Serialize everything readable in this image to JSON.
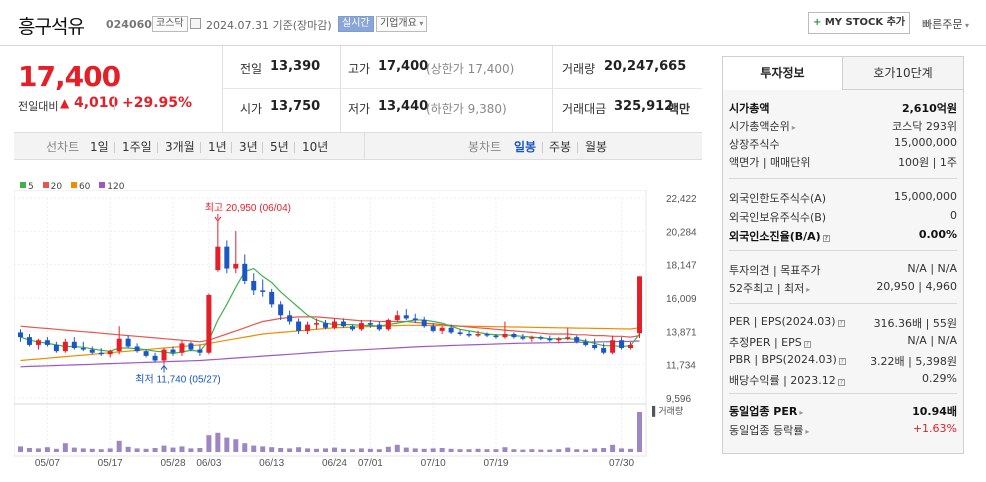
{
  "header": {
    "company_name": "흥구석유",
    "code": "024060",
    "market": "코스닥",
    "base_date": "2024.07.31 기준(장마감)",
    "realtime": "실시간",
    "company_overview": "기업개요",
    "my_stock": "MY STOCK 추가",
    "quick_order": "빠른주문"
  },
  "price": {
    "current": "17,400",
    "change_label": "전일대비",
    "change": "4,010",
    "change_pct": "+29.95%"
  },
  "quotes": {
    "prev_label": "전일",
    "prev": "13,390",
    "open_label": "시가",
    "open": "13,750",
    "high_label": "고가",
    "high": "17,400",
    "upper_limit": "(상한가 17,400)",
    "low_label": "저가",
    "low": "13,440",
    "lower_limit": "(하한가 9,380)",
    "volume_label": "거래량",
    "volume": "20,247,665",
    "amount_label": "거래대금",
    "amount": "325,912",
    "amount_unit": "백만"
  },
  "tabs": {
    "line_label": "선차트",
    "line_periods": [
      "1일",
      "1주일",
      "3개월",
      "1년",
      "3년",
      "5년",
      "10년"
    ],
    "candle_label": "봉차트",
    "candle_periods": [
      "일봉",
      "주봉",
      "월봉"
    ],
    "candle_active": "일봉"
  },
  "chart_data": {
    "type": "candlestick",
    "legend": [
      "5",
      "20",
      "60",
      "120"
    ],
    "legend_colors": [
      "#3cb44b",
      "#e6584f",
      "#f08c00",
      "#9b59c6"
    ],
    "y_ticks": [
      "22,422",
      "20,284",
      "18,147",
      "16,009",
      "13,871",
      "11,734",
      "9,596"
    ],
    "ylim": [
      9596,
      22422
    ],
    "x_ticks": [
      "05/07",
      "05/17",
      "05/28",
      "06/03",
      "06/13",
      "06/24",
      "07/01",
      "07/10",
      "07/19",
      "07/30"
    ],
    "annotation_high": "최고 20,950 (06/04)",
    "annotation_low": "최저 11,740 (05/27)",
    "volume_label": "거래량",
    "up_color": "#e41f27",
    "down_color": "#1a56c4",
    "candles": [
      {
        "o": 13800,
        "h": 14000,
        "l": 13200,
        "c": 13500
      },
      {
        "o": 13500,
        "h": 13700,
        "l": 12900,
        "c": 13000
      },
      {
        "o": 13000,
        "h": 13400,
        "l": 12700,
        "c": 13300
      },
      {
        "o": 13300,
        "h": 13500,
        "l": 12900,
        "c": 13000
      },
      {
        "o": 13000,
        "h": 13200,
        "l": 12500,
        "c": 12600
      },
      {
        "o": 12600,
        "h": 13400,
        "l": 12500,
        "c": 13200
      },
      {
        "o": 13200,
        "h": 13500,
        "l": 12700,
        "c": 12800
      },
      {
        "o": 12800,
        "h": 13200,
        "l": 12600,
        "c": 12700
      },
      {
        "o": 12700,
        "h": 12900,
        "l": 12400,
        "c": 12500
      },
      {
        "o": 12500,
        "h": 12800,
        "l": 12300,
        "c": 12400
      },
      {
        "o": 12400,
        "h": 12700,
        "l": 12200,
        "c": 12600
      },
      {
        "o": 12600,
        "h": 14200,
        "l": 12400,
        "c": 13400
      },
      {
        "o": 13400,
        "h": 13600,
        "l": 12800,
        "c": 12900
      },
      {
        "o": 12900,
        "h": 13100,
        "l": 12500,
        "c": 12600
      },
      {
        "o": 12600,
        "h": 12700,
        "l": 12200,
        "c": 12300
      },
      {
        "o": 12300,
        "h": 12500,
        "l": 11900,
        "c": 12000
      },
      {
        "o": 12000,
        "h": 12800,
        "l": 11740,
        "c": 12700
      },
      {
        "o": 12700,
        "h": 12900,
        "l": 12300,
        "c": 12500
      },
      {
        "o": 12500,
        "h": 13300,
        "l": 12300,
        "c": 13100
      },
      {
        "o": 13100,
        "h": 13200,
        "l": 12600,
        "c": 12700
      },
      {
        "o": 12700,
        "h": 13000,
        "l": 12300,
        "c": 12500
      },
      {
        "o": 12500,
        "h": 16300,
        "l": 12400,
        "c": 16200
      },
      {
        "o": 17800,
        "h": 20950,
        "l": 17700,
        "c": 19300
      },
      {
        "o": 19300,
        "h": 19700,
        "l": 17600,
        "c": 17900
      },
      {
        "o": 17900,
        "h": 20300,
        "l": 17600,
        "c": 18200
      },
      {
        "o": 18200,
        "h": 18800,
        "l": 16900,
        "c": 17100
      },
      {
        "o": 17100,
        "h": 17600,
        "l": 16200,
        "c": 16500
      },
      {
        "o": 16500,
        "h": 17200,
        "l": 16100,
        "c": 16400
      },
      {
        "o": 16400,
        "h": 16600,
        "l": 15400,
        "c": 15600
      },
      {
        "o": 15600,
        "h": 15800,
        "l": 14600,
        "c": 14900
      },
      {
        "o": 14900,
        "h": 15200,
        "l": 14300,
        "c": 14500
      },
      {
        "o": 14500,
        "h": 14700,
        "l": 13700,
        "c": 13900
      },
      {
        "o": 13900,
        "h": 14500,
        "l": 13700,
        "c": 14300
      },
      {
        "o": 14300,
        "h": 14700,
        "l": 14000,
        "c": 14400
      },
      {
        "o": 14400,
        "h": 14600,
        "l": 14000,
        "c": 14100
      },
      {
        "o": 14100,
        "h": 14700,
        "l": 14000,
        "c": 14500
      },
      {
        "o": 14500,
        "h": 14700,
        "l": 14100,
        "c": 14200
      },
      {
        "o": 14200,
        "h": 14300,
        "l": 13900,
        "c": 14000
      },
      {
        "o": 14000,
        "h": 14600,
        "l": 13900,
        "c": 14400
      },
      {
        "o": 14400,
        "h": 14600,
        "l": 14100,
        "c": 14300
      },
      {
        "o": 14300,
        "h": 14500,
        "l": 13900,
        "c": 14000
      },
      {
        "o": 14000,
        "h": 14700,
        "l": 13900,
        "c": 14600
      },
      {
        "o": 14600,
        "h": 15200,
        "l": 14500,
        "c": 14900
      },
      {
        "o": 14900,
        "h": 15300,
        "l": 14600,
        "c": 14700
      },
      {
        "o": 14700,
        "h": 15000,
        "l": 14400,
        "c": 14600
      },
      {
        "o": 14600,
        "h": 14800,
        "l": 14100,
        "c": 14200
      },
      {
        "o": 14200,
        "h": 14400,
        "l": 13800,
        "c": 13900
      },
      {
        "o": 13900,
        "h": 14200,
        "l": 13700,
        "c": 14100
      },
      {
        "o": 14100,
        "h": 14300,
        "l": 13700,
        "c": 13800
      },
      {
        "o": 13800,
        "h": 14000,
        "l": 13600,
        "c": 13700
      },
      {
        "o": 13700,
        "h": 13900,
        "l": 13500,
        "c": 13600
      },
      {
        "o": 13600,
        "h": 13900,
        "l": 13500,
        "c": 13700
      },
      {
        "o": 13700,
        "h": 13800,
        "l": 13500,
        "c": 13600
      },
      {
        "o": 13600,
        "h": 13700,
        "l": 13400,
        "c": 13500
      },
      {
        "o": 13500,
        "h": 14500,
        "l": 13400,
        "c": 13700
      },
      {
        "o": 13700,
        "h": 13800,
        "l": 13400,
        "c": 13500
      },
      {
        "o": 13500,
        "h": 13700,
        "l": 13300,
        "c": 13400
      },
      {
        "o": 13400,
        "h": 13600,
        "l": 13200,
        "c": 13500
      },
      {
        "o": 13500,
        "h": 13600,
        "l": 13300,
        "c": 13400
      },
      {
        "o": 13400,
        "h": 13600,
        "l": 13200,
        "c": 13300
      },
      {
        "o": 13300,
        "h": 13500,
        "l": 13100,
        "c": 13400
      },
      {
        "o": 13400,
        "h": 14100,
        "l": 13300,
        "c": 13500
      },
      {
        "o": 13500,
        "h": 13600,
        "l": 13100,
        "c": 13200
      },
      {
        "o": 13200,
        "h": 13400,
        "l": 12900,
        "c": 13000
      },
      {
        "o": 13000,
        "h": 13400,
        "l": 12700,
        "c": 12800
      },
      {
        "o": 12800,
        "h": 13100,
        "l": 12400,
        "c": 12500
      },
      {
        "o": 12500,
        "h": 13600,
        "l": 12400,
        "c": 13300
      },
      {
        "o": 13300,
        "h": 13500,
        "l": 12700,
        "c": 12800
      },
      {
        "o": 12800,
        "h": 13200,
        "l": 12700,
        "c": 13000
      },
      {
        "o": 13750,
        "h": 17400,
        "l": 13440,
        "c": 17400
      }
    ],
    "volume": [
      14,
      10,
      9,
      12,
      8,
      22,
      11,
      9,
      8,
      7,
      9,
      28,
      13,
      9,
      8,
      10,
      16,
      11,
      14,
      9,
      10,
      42,
      48,
      36,
      32,
      22,
      16,
      14,
      12,
      10,
      9,
      12,
      9,
      8,
      9,
      11,
      8,
      7,
      9,
      8,
      7,
      13,
      18,
      11,
      9,
      8,
      9,
      10,
      8,
      7,
      7,
      8,
      7,
      7,
      12,
      7,
      6,
      7,
      6,
      6,
      7,
      11,
      7,
      6,
      9,
      10,
      18,
      9,
      8,
      100
    ],
    "ma5": [
      13500,
      13300,
      13200,
      13100,
      13000,
      12900,
      12900,
      12850,
      12750,
      12650,
      12600,
      12800,
      12800,
      12750,
      12700,
      12600,
      12550,
      12450,
      12550,
      12650,
      12600,
      13300,
      14600,
      15600,
      16700,
      17700,
      17900,
      17400,
      17000,
      16400,
      15900,
      15400,
      14900,
      14600,
      14400,
      14300,
      14300,
      14300,
      14250,
      14250,
      14200,
      14300,
      14400,
      14500,
      14600,
      14600,
      14500,
      14400,
      14200,
      14000,
      13900,
      13800,
      13700,
      13650,
      13650,
      13600,
      13550,
      13500,
      13450,
      13400,
      13400,
      13400,
      13350,
      13250,
      13100,
      12950,
      12950,
      12900,
      12950,
      13700
    ],
    "ma20": [
      14200,
      14150,
      14100,
      14050,
      14000,
      13950,
      13900,
      13850,
      13800,
      13750,
      13700,
      13650,
      13600,
      13550,
      13500,
      13450,
      13400,
      13350,
      13300,
      13250,
      13200,
      13300,
      13500,
      13700,
      13900,
      14100,
      14300,
      14500,
      14600,
      14700,
      14750,
      14800,
      14800,
      14800,
      14750,
      14700,
      14650,
      14600,
      14550,
      14550,
      14500,
      14500,
      14500,
      14500,
      14450,
      14400,
      14350,
      14300,
      14250,
      14200,
      14150,
      14100,
      14050,
      14000,
      13950,
      13900,
      13850,
      13800,
      13750,
      13700,
      13700,
      13700,
      13650,
      13650,
      13600,
      13600,
      13550,
      13550,
      13500,
      13600
    ],
    "ma60": [
      12000,
      12050,
      12100,
      12150,
      12200,
      12250,
      12300,
      12350,
      12400,
      12450,
      12500,
      12550,
      12600,
      12650,
      12700,
      12750,
      12800,
      12850,
      12900,
      12950,
      13000,
      13100,
      13200,
      13300,
      13400,
      13500,
      13600,
      13700,
      13750,
      13800,
      13850,
      13900,
      13950,
      14000,
      14050,
      14100,
      14120,
      14140,
      14160,
      14180,
      14200,
      14220,
      14240,
      14260,
      14260,
      14250,
      14240,
      14230,
      14220,
      14210,
      14200,
      14190,
      14180,
      14170,
      14160,
      14150,
      14140,
      14130,
      14120,
      14110,
      14100,
      14090,
      14080,
      14070,
      14060,
      14050,
      14040,
      14030,
      14020,
      14100
    ],
    "ma120": [
      11600,
      11620,
      11640,
      11660,
      11680,
      11700,
      11720,
      11740,
      11760,
      11780,
      11800,
      11820,
      11840,
      11860,
      11880,
      11900,
      11920,
      11940,
      11960,
      11980,
      12000,
      12040,
      12080,
      12120,
      12160,
      12200,
      12240,
      12280,
      12320,
      12360,
      12400,
      12440,
      12480,
      12520,
      12560,
      12600,
      12630,
      12660,
      12690,
      12720,
      12750,
      12780,
      12810,
      12840,
      12870,
      12900,
      12920,
      12940,
      12960,
      12980,
      13000,
      13020,
      13040,
      13060,
      13080,
      13100,
      13110,
      13120,
      13130,
      13140,
      13150,
      13160,
      13170,
      13180,
      13190,
      13200,
      13210,
      13220,
      13230,
      13250
    ]
  },
  "invest": {
    "tab1": "투자정보",
    "tab2": "호가10단계",
    "rows1": [
      {
        "label": "시가총액",
        "value": "2,610억원",
        "bold": true
      },
      {
        "label": "시가총액순위",
        "value": "코스닥 293위",
        "arrow": true
      },
      {
        "label": "상장주식수",
        "value": "15,000,000"
      },
      {
        "label": "액면가 | 매매단위",
        "value": "100원 | 1주"
      }
    ],
    "rows2": [
      {
        "label": "외국인한도주식수(A)",
        "value": "15,000,000"
      },
      {
        "label": "외국인보유주식수(B)",
        "value": "0"
      },
      {
        "label": "외국인소진율(B/A)",
        "value": "0.00%",
        "bold": true,
        "info": true
      }
    ],
    "rows3": [
      {
        "label": "투자의견 | 목표주가",
        "value": "N/A | N/A"
      },
      {
        "label": "52주최고 | 최저",
        "value": "20,950 | 4,960",
        "arrow": true
      }
    ],
    "rows4": [
      {
        "label": "PER | EPS(2024.03)",
        "value": "316.36배 | 55원",
        "info": true
      },
      {
        "label": "추정PER | EPS",
        "value": "N/A | N/A",
        "info": true
      },
      {
        "label": "PBR | BPS(2024.03)",
        "value": "3.22배 | 5,398원",
        "info": true
      },
      {
        "label": "배당수익률 | 2023.12",
        "value": "0.29%",
        "info": true
      }
    ],
    "rows5": [
      {
        "label": "동일업종 PER",
        "value": "10.94배",
        "bold": true,
        "arrow": true
      },
      {
        "label": "동일업종 등락률",
        "value": "+1.63%",
        "arrow": true,
        "red": true
      }
    ]
  }
}
